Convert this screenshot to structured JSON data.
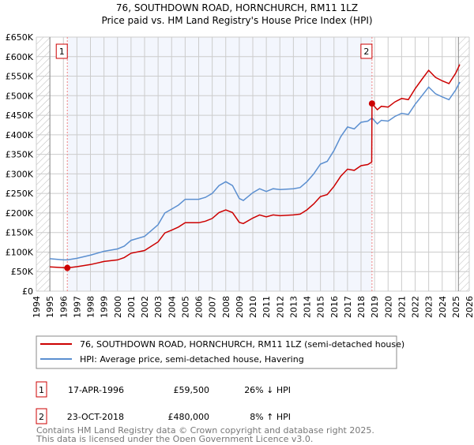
{
  "chart_data": {
    "type": "line",
    "title": "76, SOUTHDOWN ROAD, HORNCHURCH, RM11 1LZ",
    "subtitle": "Price paid vs. HM Land Registry's House Price Index (HPI)",
    "xlabel": "",
    "ylabel": "",
    "xlim": [
      1994,
      2026
    ],
    "ylim": [
      0,
      650000
    ],
    "grid": true,
    "x_ticks": [
      1994,
      1995,
      1996,
      1997,
      1998,
      1999,
      2000,
      2001,
      2002,
      2003,
      2004,
      2005,
      2006,
      2007,
      2008,
      2009,
      2010,
      2011,
      2012,
      2013,
      2014,
      2015,
      2016,
      2017,
      2018,
      2019,
      2020,
      2021,
      2022,
      2023,
      2024,
      2025,
      2026
    ],
    "y_ticks": [
      0,
      50000,
      100000,
      150000,
      200000,
      250000,
      300000,
      350000,
      400000,
      450000,
      500000,
      550000,
      600000,
      650000
    ],
    "y_tick_labels": [
      "£0",
      "£50K",
      "£100K",
      "£150K",
      "£200K",
      "£250K",
      "£300K",
      "£350K",
      "£400K",
      "£450K",
      "£500K",
      "£550K",
      "£600K",
      "£650K"
    ],
    "hatched_ranges": [
      [
        1994,
        1995
      ],
      [
        2025.2,
        2026
      ]
    ],
    "shaded_range": [
      1996.29,
      2018.81
    ],
    "series": [
      {
        "name": "76, SOUTHDOWN ROAD, HORNCHURCH, RM11 1LZ (semi-detached house)",
        "color": "#cc0000",
        "x": [
          1995,
          1996,
          1996.29,
          1997,
          1998,
          1999,
          2000,
          2000.5,
          2001,
          2002,
          2002.5,
          2003,
          2003.5,
          2004,
          2004.5,
          2005,
          2006,
          2006.5,
          2007,
          2007.5,
          2008,
          2008.5,
          2009,
          2009.3,
          2010,
          2010.5,
          2011,
          2011.5,
          2012,
          2013,
          2013.5,
          2014,
          2014.5,
          2015,
          2015.5,
          2016,
          2016.5,
          2017,
          2017.5,
          2018,
          2018.5,
          2018.79,
          2018.81,
          2019.2,
          2019.5,
          2020,
          2020.5,
          2021,
          2021.5,
          2022,
          2022.5,
          2023,
          2023.5,
          2024,
          2024.5,
          2025,
          2025.3
        ],
        "y": [
          62000,
          60000,
          59500,
          62500,
          68000,
          76000,
          80000,
          86000,
          97000,
          104000,
          115000,
          126000,
          149000,
          156000,
          164000,
          175000,
          175000,
          179000,
          186000,
          201000,
          208000,
          201000,
          176000,
          173000,
          187000,
          195000,
          190000,
          195000,
          193000,
          195000,
          197000,
          208000,
          223000,
          242000,
          247000,
          268000,
          294000,
          312000,
          309000,
          321000,
          324000,
          330000,
          480000,
          464000,
          473000,
          471000,
          484000,
          493000,
          490000,
          518000,
          542000,
          565000,
          547000,
          538000,
          531000,
          558000,
          580000
        ]
      },
      {
        "name": "HPI: Average price, semi-detached house, Havering",
        "color": "#5b8fd0",
        "x": [
          1995,
          1996,
          1996.29,
          1997,
          1998,
          1999,
          2000,
          2000.5,
          2001,
          2002,
          2002.5,
          2003,
          2003.5,
          2004,
          2004.5,
          2005,
          2006,
          2006.5,
          2007,
          2007.5,
          2008,
          2008.5,
          2009,
          2009.3,
          2010,
          2010.5,
          2011,
          2011.5,
          2012,
          2013,
          2013.5,
          2014,
          2014.5,
          2015,
          2015.5,
          2016,
          2016.5,
          2017,
          2017.5,
          2018,
          2018.5,
          2018.81,
          2019.2,
          2019.5,
          2020,
          2020.5,
          2021,
          2021.5,
          2022,
          2022.5,
          2023,
          2023.5,
          2024,
          2024.5,
          2025,
          2025.3
        ],
        "y": [
          83000,
          80000,
          80000,
          84000,
          92000,
          102000,
          108000,
          115000,
          130000,
          140000,
          155000,
          170000,
          200000,
          210000,
          220000,
          235000,
          235000,
          240000,
          250000,
          270000,
          280000,
          270000,
          237000,
          232000,
          252000,
          262000,
          255000,
          262000,
          260000,
          262000,
          265000,
          280000,
          300000,
          325000,
          332000,
          360000,
          395000,
          420000,
          415000,
          432000,
          435000,
          443000,
          428000,
          437000,
          435000,
          447000,
          455000,
          452000,
          478000,
          500000,
          522000,
          505000,
          497000,
          490000,
          515000,
          535000
        ]
      }
    ],
    "annotations": [
      {
        "label": "1",
        "x": 1996.29,
        "y": 59500
      },
      {
        "label": "2",
        "x": 2018.81,
        "y": 480000
      }
    ]
  },
  "legend": {
    "items": [
      {
        "label": "76, SOUTHDOWN ROAD, HORNCHURCH, RM11 1LZ (semi-detached house)",
        "color": "#cc0000"
      },
      {
        "label": "HPI: Average price, semi-detached house, Havering",
        "color": "#5b8fd0"
      }
    ]
  },
  "transactions": [
    {
      "num": "1",
      "date": "17-APR-1996",
      "price": "£59,500",
      "hpi": "26% ↓ HPI"
    },
    {
      "num": "2",
      "date": "23-OCT-2018",
      "price": "£480,000",
      "hpi": "8% ↑ HPI"
    }
  ],
  "footer": {
    "line1": "Contains HM Land Registry data © Crown copyright and database right 2025.",
    "line2": "This data is licensed under the Open Government Licence v3.0."
  }
}
